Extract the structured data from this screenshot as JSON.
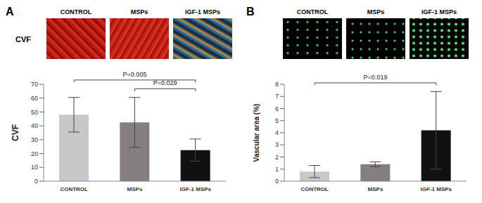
{
  "chart_data": [
    {
      "type": "bar",
      "panel": "A",
      "image_row_label": "CVF",
      "image_labels": [
        "CONTROL",
        "MSPs",
        "IGF-1 MSPs"
      ],
      "y_label": "CVF",
      "categories": [
        "CONTROL",
        "MSPs",
        "IGF-1 MSPs"
      ],
      "values": [
        48,
        42.5,
        22.5
      ],
      "errors": [
        12.5,
        18,
        8
      ],
      "colors": [
        "#c8c8c8",
        "#857f7f",
        "#111111"
      ],
      "ylim": [
        0,
        70
      ],
      "yticks": [
        0,
        10,
        20,
        30,
        40,
        50,
        60,
        70
      ],
      "annotations": [
        {
          "text": "P=0.005",
          "from": "CONTROL",
          "to": "IGF-1 MSPs"
        },
        {
          "text": "P=0.029",
          "from": "MSPs",
          "to": "IGF-1 MSPs"
        }
      ]
    },
    {
      "type": "bar",
      "panel": "B",
      "image_labels": [
        "CONTROL",
        "MSPs",
        "IGF-1 MSPs"
      ],
      "y_label": "Vascular area (%)",
      "categories": [
        "CONTROL",
        "MSPs",
        "IGF-1 MSPs"
      ],
      "values": [
        0.8,
        1.4,
        4.2
      ],
      "errors": [
        0.5,
        0.2,
        3.2
      ],
      "colors": [
        "#c8c8c8",
        "#857f7f",
        "#111111"
      ],
      "ylim": [
        0,
        8
      ],
      "yticks": [
        0,
        1,
        2,
        3,
        4,
        5,
        6,
        7,
        8
      ],
      "annotations": [
        {
          "text": "P=0.019",
          "from": "CONTROL",
          "to": "IGF-1 MSPs"
        }
      ]
    }
  ]
}
